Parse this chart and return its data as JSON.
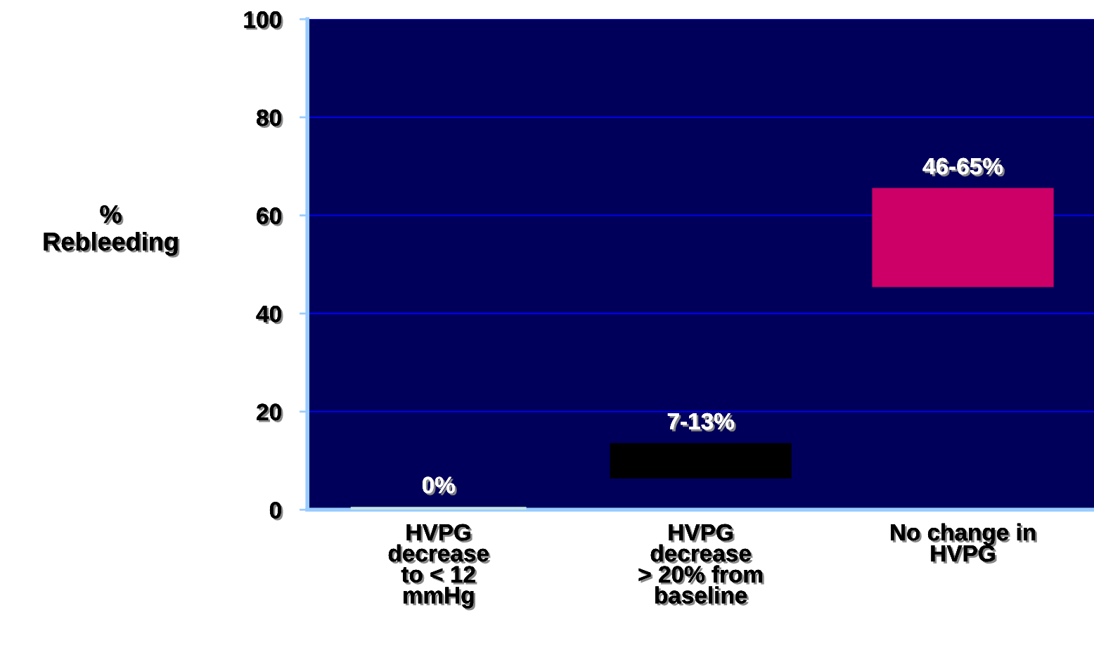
{
  "chart_data": {
    "type": "bar",
    "ylabel": "%\nRebleeding",
    "categories": [
      "HVPG\ndecrease\nto < 12\nmmHg",
      "HVPG\ndecrease\n> 20% from\nbaseline",
      "No change in\nHVPG"
    ],
    "base": [
      0,
      7,
      46
    ],
    "values": [
      0,
      6,
      19
    ],
    "colors": [
      "#c4e4e4",
      "#000000",
      "#cc0066"
    ],
    "annotations": [
      {
        "text": "0%",
        "x": "HVPG\ndecrease\nto < 12\nmmHg",
        "y": 0
      },
      {
        "text": "7-13%",
        "x": "HVPG\ndecrease\n> 20% from\nbaseline",
        "y": 13
      },
      {
        "text": "46-65%",
        "x": "No change in\nHVPG",
        "y": 65
      }
    ],
    "ylim": [
      0,
      100
    ],
    "yticks": [
      0,
      20,
      40,
      60,
      80,
      100
    ],
    "grid": "y",
    "legend": false
  }
}
